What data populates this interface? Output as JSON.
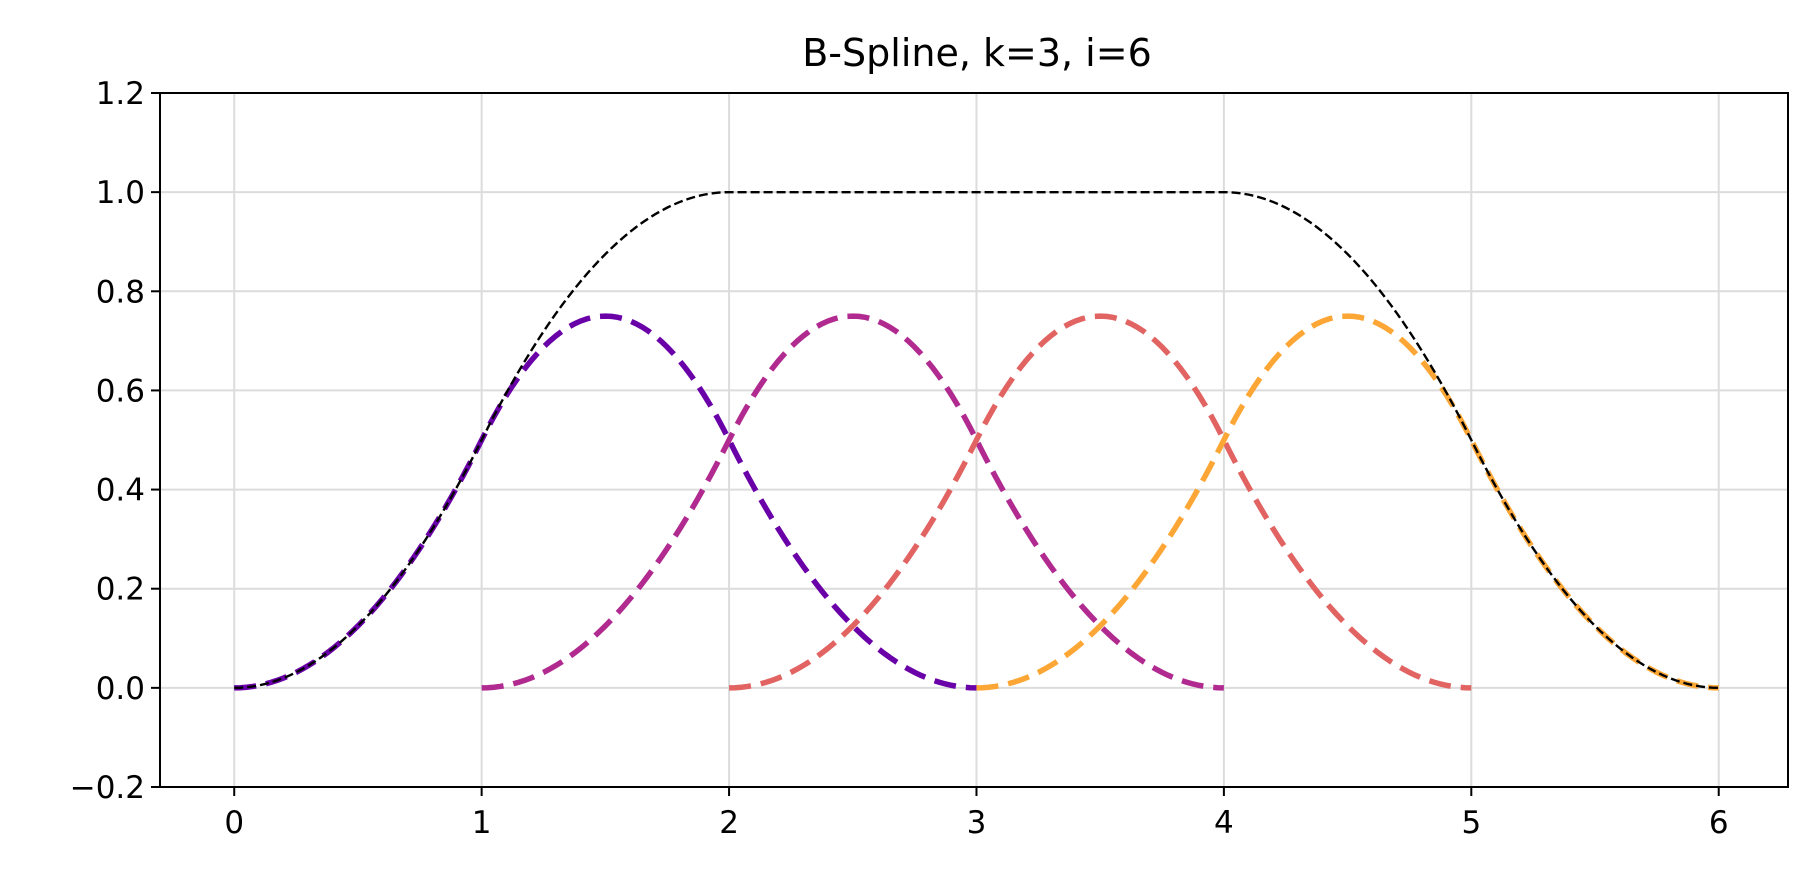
{
  "chart_data": {
    "type": "line",
    "title": "B-Spline, k=3, i=6",
    "xlabel": "",
    "ylabel": "",
    "xlim": [
      -0.3,
      6.28
    ],
    "ylim": [
      -0.2,
      1.2
    ],
    "xticks": [
      0,
      1,
      2,
      3,
      4,
      5,
      6
    ],
    "xtick_labels": [
      "0",
      "1",
      "2",
      "3",
      "4",
      "5",
      "6"
    ],
    "yticks": [
      -0.2,
      0.0,
      0.2,
      0.4,
      0.6,
      0.8,
      1.0,
      1.2
    ],
    "ytick_labels": [
      "−0.2",
      "0.0",
      "0.2",
      "0.4",
      "0.6",
      "0.8",
      "1.0",
      "1.2"
    ],
    "grid": true,
    "legend": "none",
    "series": [
      {
        "color": "#6a00a8",
        "style": "dashed",
        "x": [
          0,
          0.25,
          0.5,
          0.75,
          1.0,
          1.25,
          1.5,
          1.75,
          2.0,
          2.25,
          2.5,
          2.75,
          3.0
        ],
        "y": [
          0,
          0.031,
          0.125,
          0.281,
          0.5,
          0.688,
          0.75,
          0.688,
          0.5,
          0.281,
          0.125,
          0.031,
          0
        ]
      },
      {
        "color": "#b12a90",
        "style": "dashed",
        "x": [
          1.0,
          1.25,
          1.5,
          1.75,
          2.0,
          2.25,
          2.5,
          2.75,
          3.0,
          3.25,
          3.5,
          3.75,
          4.0
        ],
        "y": [
          0,
          0.031,
          0.125,
          0.281,
          0.5,
          0.688,
          0.75,
          0.688,
          0.5,
          0.281,
          0.125,
          0.031,
          0
        ]
      },
      {
        "color": "#e16462",
        "style": "dashed",
        "x": [
          2.0,
          2.25,
          2.5,
          2.75,
          3.0,
          3.25,
          3.5,
          3.75,
          4.0,
          4.25,
          4.5,
          4.75,
          5.0
        ],
        "y": [
          0,
          0.031,
          0.125,
          0.281,
          0.5,
          0.688,
          0.75,
          0.688,
          0.5,
          0.281,
          0.125,
          0.031,
          0
        ]
      },
      {
        "color": "#fca636",
        "style": "dashed",
        "x": [
          3.0,
          3.25,
          3.5,
          3.75,
          4.0,
          4.25,
          4.5,
          4.75,
          5.0,
          5.25,
          5.5,
          5.75,
          6.0
        ],
        "y": [
          0,
          0.031,
          0.125,
          0.281,
          0.5,
          0.688,
          0.75,
          0.688,
          0.5,
          0.281,
          0.125,
          0.031,
          0
        ]
      },
      {
        "color": "#000000",
        "style": "dashed-thin",
        "x": [
          0,
          0.25,
          0.5,
          0.75,
          1.0,
          1.25,
          1.5,
          1.75,
          2.0,
          3.0,
          4.0,
          4.25,
          4.5,
          4.75,
          5.0,
          5.25,
          5.5,
          5.75,
          6.0
        ],
        "y": [
          0,
          0.031,
          0.125,
          0.281,
          0.5,
          0.719,
          0.875,
          0.969,
          1.0,
          1.0,
          1.0,
          0.969,
          0.875,
          0.719,
          0.5,
          0.281,
          0.125,
          0.031,
          0
        ]
      }
    ]
  }
}
